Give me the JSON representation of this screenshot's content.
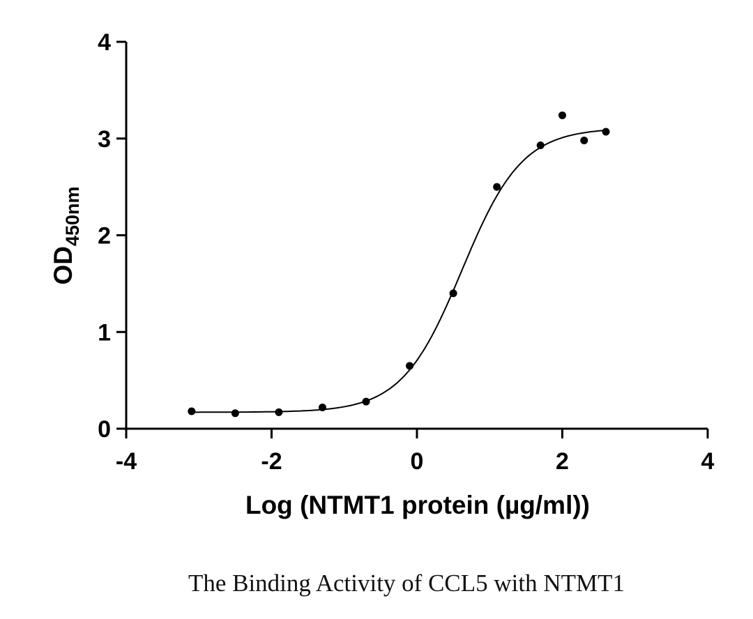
{
  "chart_data": {
    "type": "scatter",
    "title": "",
    "caption": "The Binding Activity of CCL5 with NTMT1",
    "xlabel": "Log (NTMT1 protein (µg/ml))",
    "ylabel_main": "OD",
    "ylabel_sub": "450nm",
    "xlim": [
      -4,
      4
    ],
    "ylim": [
      0,
      4
    ],
    "xticks": [
      "-4",
      "-2",
      "0",
      "2",
      "4"
    ],
    "yticks": [
      "0",
      "1",
      "2",
      "3",
      "4"
    ],
    "grid": false,
    "series": [
      {
        "points": [
          {
            "x": -3.1,
            "y": 0.18
          },
          {
            "x": -2.5,
            "y": 0.16
          },
          {
            "x": -1.9,
            "y": 0.17
          },
          {
            "x": -1.3,
            "y": 0.22
          },
          {
            "x": -0.7,
            "y": 0.28
          },
          {
            "x": -0.1,
            "y": 0.65
          },
          {
            "x": 0.5,
            "y": 1.4
          },
          {
            "x": 1.1,
            "y": 2.5
          },
          {
            "x": 1.7,
            "y": 2.93
          },
          {
            "x": 2.0,
            "y": 3.24
          },
          {
            "x": 2.3,
            "y": 2.98
          },
          {
            "x": 2.6,
            "y": 3.07
          }
        ],
        "fit": {
          "model": "sigmoid",
          "bottom": 0.17,
          "top": 3.11,
          "logEC50": 0.62,
          "hillslope": 1.05
        },
        "color": "#000000"
      }
    ]
  }
}
